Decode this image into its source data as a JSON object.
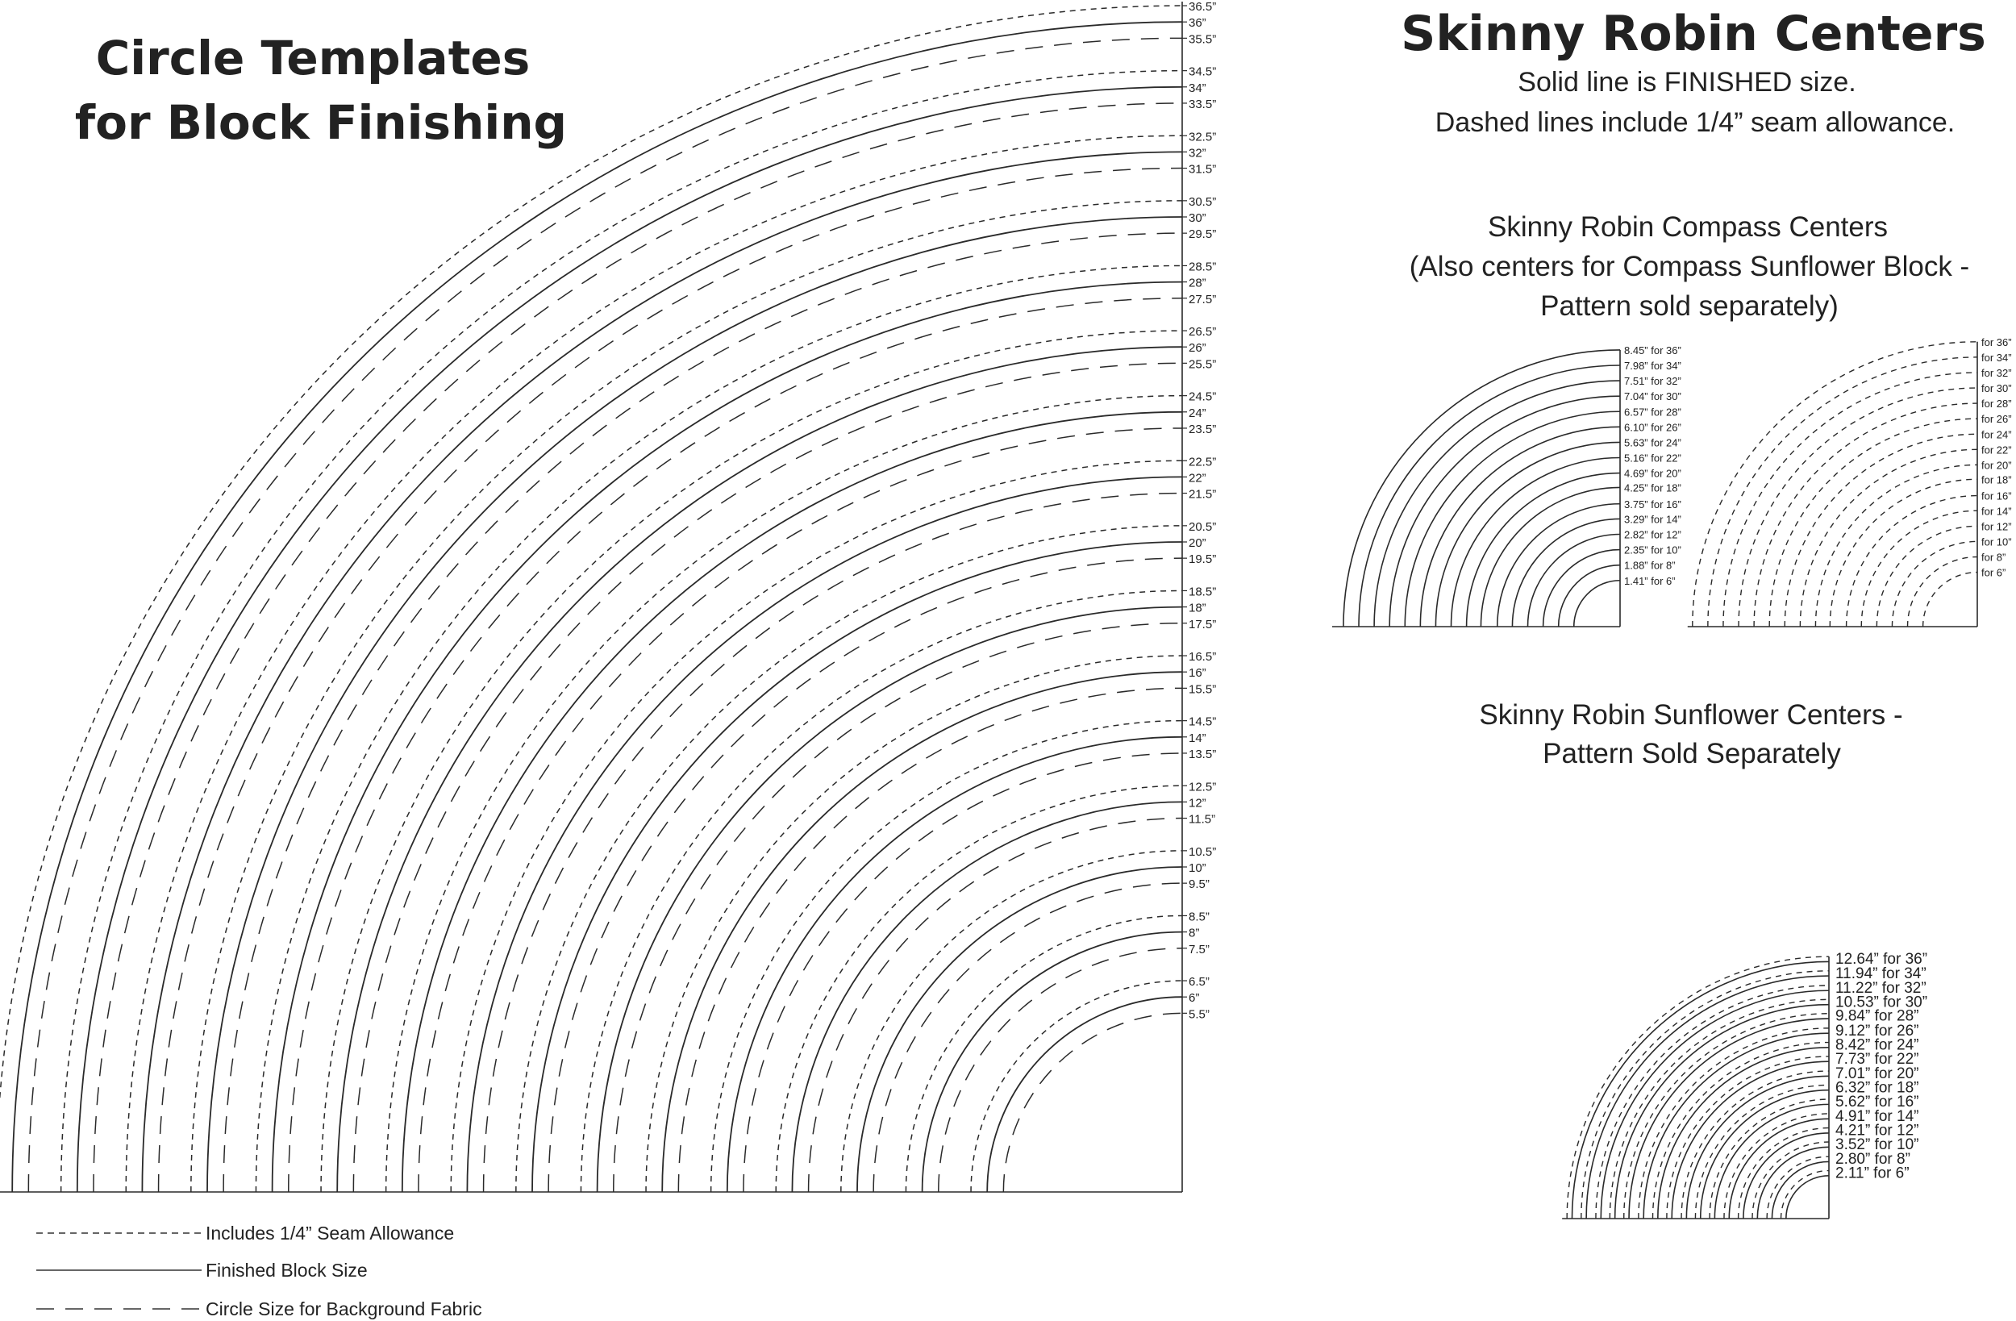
{
  "left": {
    "title_line1": "Circle Templates",
    "title_line2": "for Block Finishing",
    "ring_labels": [
      "36.5”",
      "36”",
      "35.5”",
      "34.5”",
      "34”",
      "33.5”",
      "32.5”",
      "32”",
      "31.5”",
      "30.5”",
      "30”",
      "29.5”",
      "28.5”",
      "28”",
      "27.5”",
      "26.5”",
      "26”",
      "25.5”",
      "24.5”",
      "24”",
      "23.5”",
      "22.5”",
      "22”",
      "21.5”",
      "20.5”",
      "20”",
      "19.5”",
      "18.5”",
      "18”",
      "17.5”",
      "16.5”",
      "16”",
      "15.5”",
      "14.5”",
      "14”",
      "13.5”",
      "12.5”",
      "12”",
      "11.5”",
      "10.5”",
      "10”",
      "9.5”",
      "8.5”",
      "8”",
      "7.5”",
      "6.5”",
      "6”",
      "5.5”"
    ],
    "ring_values": [
      36.5,
      36,
      35.5,
      34.5,
      34,
      33.5,
      32.5,
      32,
      31.5,
      30.5,
      30,
      29.5,
      28.5,
      28,
      27.5,
      26.5,
      26,
      25.5,
      24.5,
      24,
      23.5,
      22.5,
      22,
      21.5,
      20.5,
      20,
      19.5,
      18.5,
      18,
      17.5,
      16.5,
      16,
      15.5,
      14.5,
      14,
      13.5,
      12.5,
      12,
      11.5,
      10.5,
      10,
      9.5,
      8.5,
      8,
      7.5,
      6.5,
      6,
      5.5
    ],
    "ring_styles": [
      "short-dash",
      "solid",
      "long-dash"
    ]
  },
  "right": {
    "title": "Skinny Robin Centers",
    "subtitle_line1": "Solid line is FINISHED size.",
    "subtitle_line2": "Dashed lines include 1/4” seam allowance.",
    "compass": {
      "heading_line1": "Skinny Robin Compass Centers",
      "heading_line2": "(Also centers for Compass Sunflower Block -",
      "heading_line3": "Pattern sold separately)",
      "solid_labels": [
        "8.45” for 36”",
        "7.98” for 34”",
        "7.51” for 32”",
        "7.04” for 30”",
        "6.57” for 28”",
        "6.10” for 26”",
        "5.63” for 24”",
        "5.16” for 22”",
        "4.69” for 20”",
        "4.25” for 18”",
        "3.75” for 16”",
        "3.29” for 14”",
        "2.82” for 12”",
        "2.35” for 10”",
        "1.88” for 8”",
        "1.41” for 6”"
      ],
      "solid_values": [
        8.45,
        7.98,
        7.51,
        7.04,
        6.57,
        6.1,
        5.63,
        5.16,
        4.69,
        4.25,
        3.75,
        3.29,
        2.82,
        2.35,
        1.88,
        1.41
      ],
      "dashed_labels": [
        "for 36”",
        "for 34”",
        "for 32”",
        "for 30”",
        "for 28”",
        "for 26”",
        "for 24”",
        "for 22”",
        "for 20”",
        "for 18”",
        "for 16”",
        "for 14”",
        "for 12”",
        "for 10”",
        "for 8”",
        "for 6”"
      ]
    },
    "sunflower": {
      "heading_line1": "Skinny Robin Sunflower Centers -",
      "heading_line2": "Pattern Sold Separately",
      "labels": [
        "12.64” for 36”",
        "11.94” for 34”",
        "11.22” for 32”",
        "10.53” for 30”",
        "9.84” for 28”",
        "9.12” for 26”",
        "8.42” for 24”",
        "7.73” for 22”",
        "7.01” for 20”",
        "6.32” for 18”",
        "5.62” for 16”",
        "4.91” for 14”",
        "4.21” for 12”",
        "3.52” for 10”",
        "2.80” for 8”",
        "2.11” for 6”"
      ],
      "values": [
        12.64,
        11.94,
        11.22,
        10.53,
        9.84,
        9.12,
        8.42,
        7.73,
        7.01,
        6.32,
        5.62,
        4.91,
        4.21,
        3.52,
        2.8,
        2.11
      ]
    }
  },
  "legend": {
    "seam": "Includes 1/4” Seam Allowance",
    "finished": "Finished Block Size",
    "background": "Circle Size for Background Fabric"
  },
  "colors": {
    "ink": "#222222",
    "background": "#ffffff"
  }
}
